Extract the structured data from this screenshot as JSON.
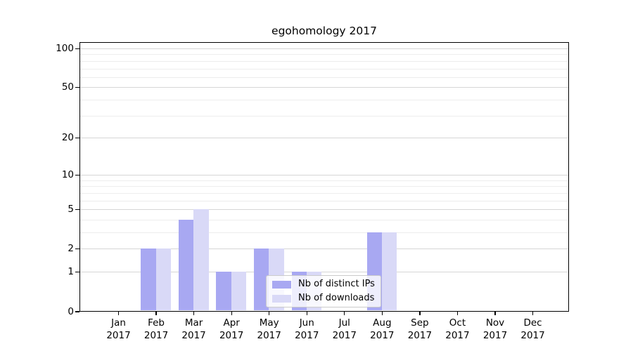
{
  "chart_data": {
    "type": "bar",
    "title": "egohomology 2017",
    "year_label": "2017",
    "categories": [
      "Jan",
      "Feb",
      "Mar",
      "Apr",
      "May",
      "Jun",
      "Jul",
      "Aug",
      "Sep",
      "Oct",
      "Nov",
      "Dec"
    ],
    "series": [
      {
        "name": "Nb of distinct IPs",
        "color": "#a8a8f2",
        "values": [
          0,
          2,
          4,
          1,
          2,
          1,
          0,
          3,
          0,
          0,
          0,
          0
        ]
      },
      {
        "name": "Nb of downloads",
        "color": "#d9d9f7",
        "values": [
          0,
          2,
          5,
          1,
          2,
          1,
          0,
          3,
          0,
          0,
          0,
          0
        ]
      }
    ],
    "y_scale": "log10(1+y)",
    "y_ticks": [
      0,
      1,
      2,
      5,
      10,
      20,
      50,
      100
    ],
    "y_minor_gridlines": [
      3,
      4,
      6,
      7,
      8,
      9,
      30,
      40,
      60,
      70,
      80,
      90
    ],
    "ylim": [
      0,
      113
    ],
    "grid": "horizontal",
    "legend_position": "lower-center",
    "xlabel": "",
    "ylabel": ""
  }
}
